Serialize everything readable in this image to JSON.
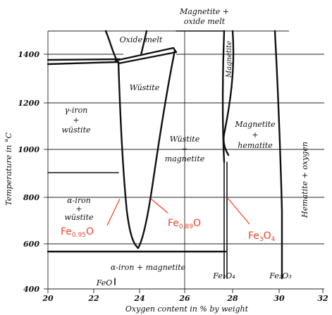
{
  "axes": {
    "x_title": "Oxygen content in % by weight",
    "y_title": "Temperature in °C",
    "x_ticks": [
      "20",
      "22",
      "24",
      "26",
      "28",
      "30",
      "32"
    ],
    "y_ticks": [
      "1400",
      "1200",
      "1000",
      "800",
      "600",
      "400"
    ]
  },
  "regions": {
    "magnetite_oxide_melt_1": "Magnetite +",
    "magnetite_oxide_melt_2": "oxide melt",
    "oxide_melt": "Oxide melt",
    "magnetite_narrow": "Magnetite",
    "wustite": "Wüstite",
    "gamma_iron_1": "γ-iron",
    "gamma_iron_2": "+",
    "gamma_iron_3": "wüstite",
    "wustite_magnetite_1": "Wüstite",
    "wustite_magnetite_2": "+",
    "wustite_magnetite_3": "magnetite",
    "magnetite_hematite_1": "Magnetite",
    "magnetite_hematite_2": "+",
    "magnetite_hematite_3": "hematite",
    "hematite_oxygen": "Hematite + oxygen",
    "alpha_iron_wustite_1": "α-iron",
    "alpha_iron_wustite_2": "+",
    "alpha_iron_wustite_3": "wüstite",
    "alpha_iron_magnetite": "α-iron + magnetite"
  },
  "compositions": {
    "feo": "FeO",
    "fe3o4": "Fe₃O₄",
    "fe2o3": "Fe₂O₃"
  },
  "annotations": {
    "fe095o_main": "Fe",
    "fe095o_sub": "0.95",
    "fe095o_tail": "O",
    "fe089o_main": "Fe",
    "fe089o_sub": "0.89",
    "fe089o_tail": "O",
    "fe3o4_main": "Fe",
    "fe3o4_sub1": "3",
    "fe3o4_mid": "O",
    "fe3o4_sub2": "4"
  },
  "colors": {
    "annotation": "#e8442c",
    "arrow": "#ff3a1c",
    "line": "#111111"
  }
}
